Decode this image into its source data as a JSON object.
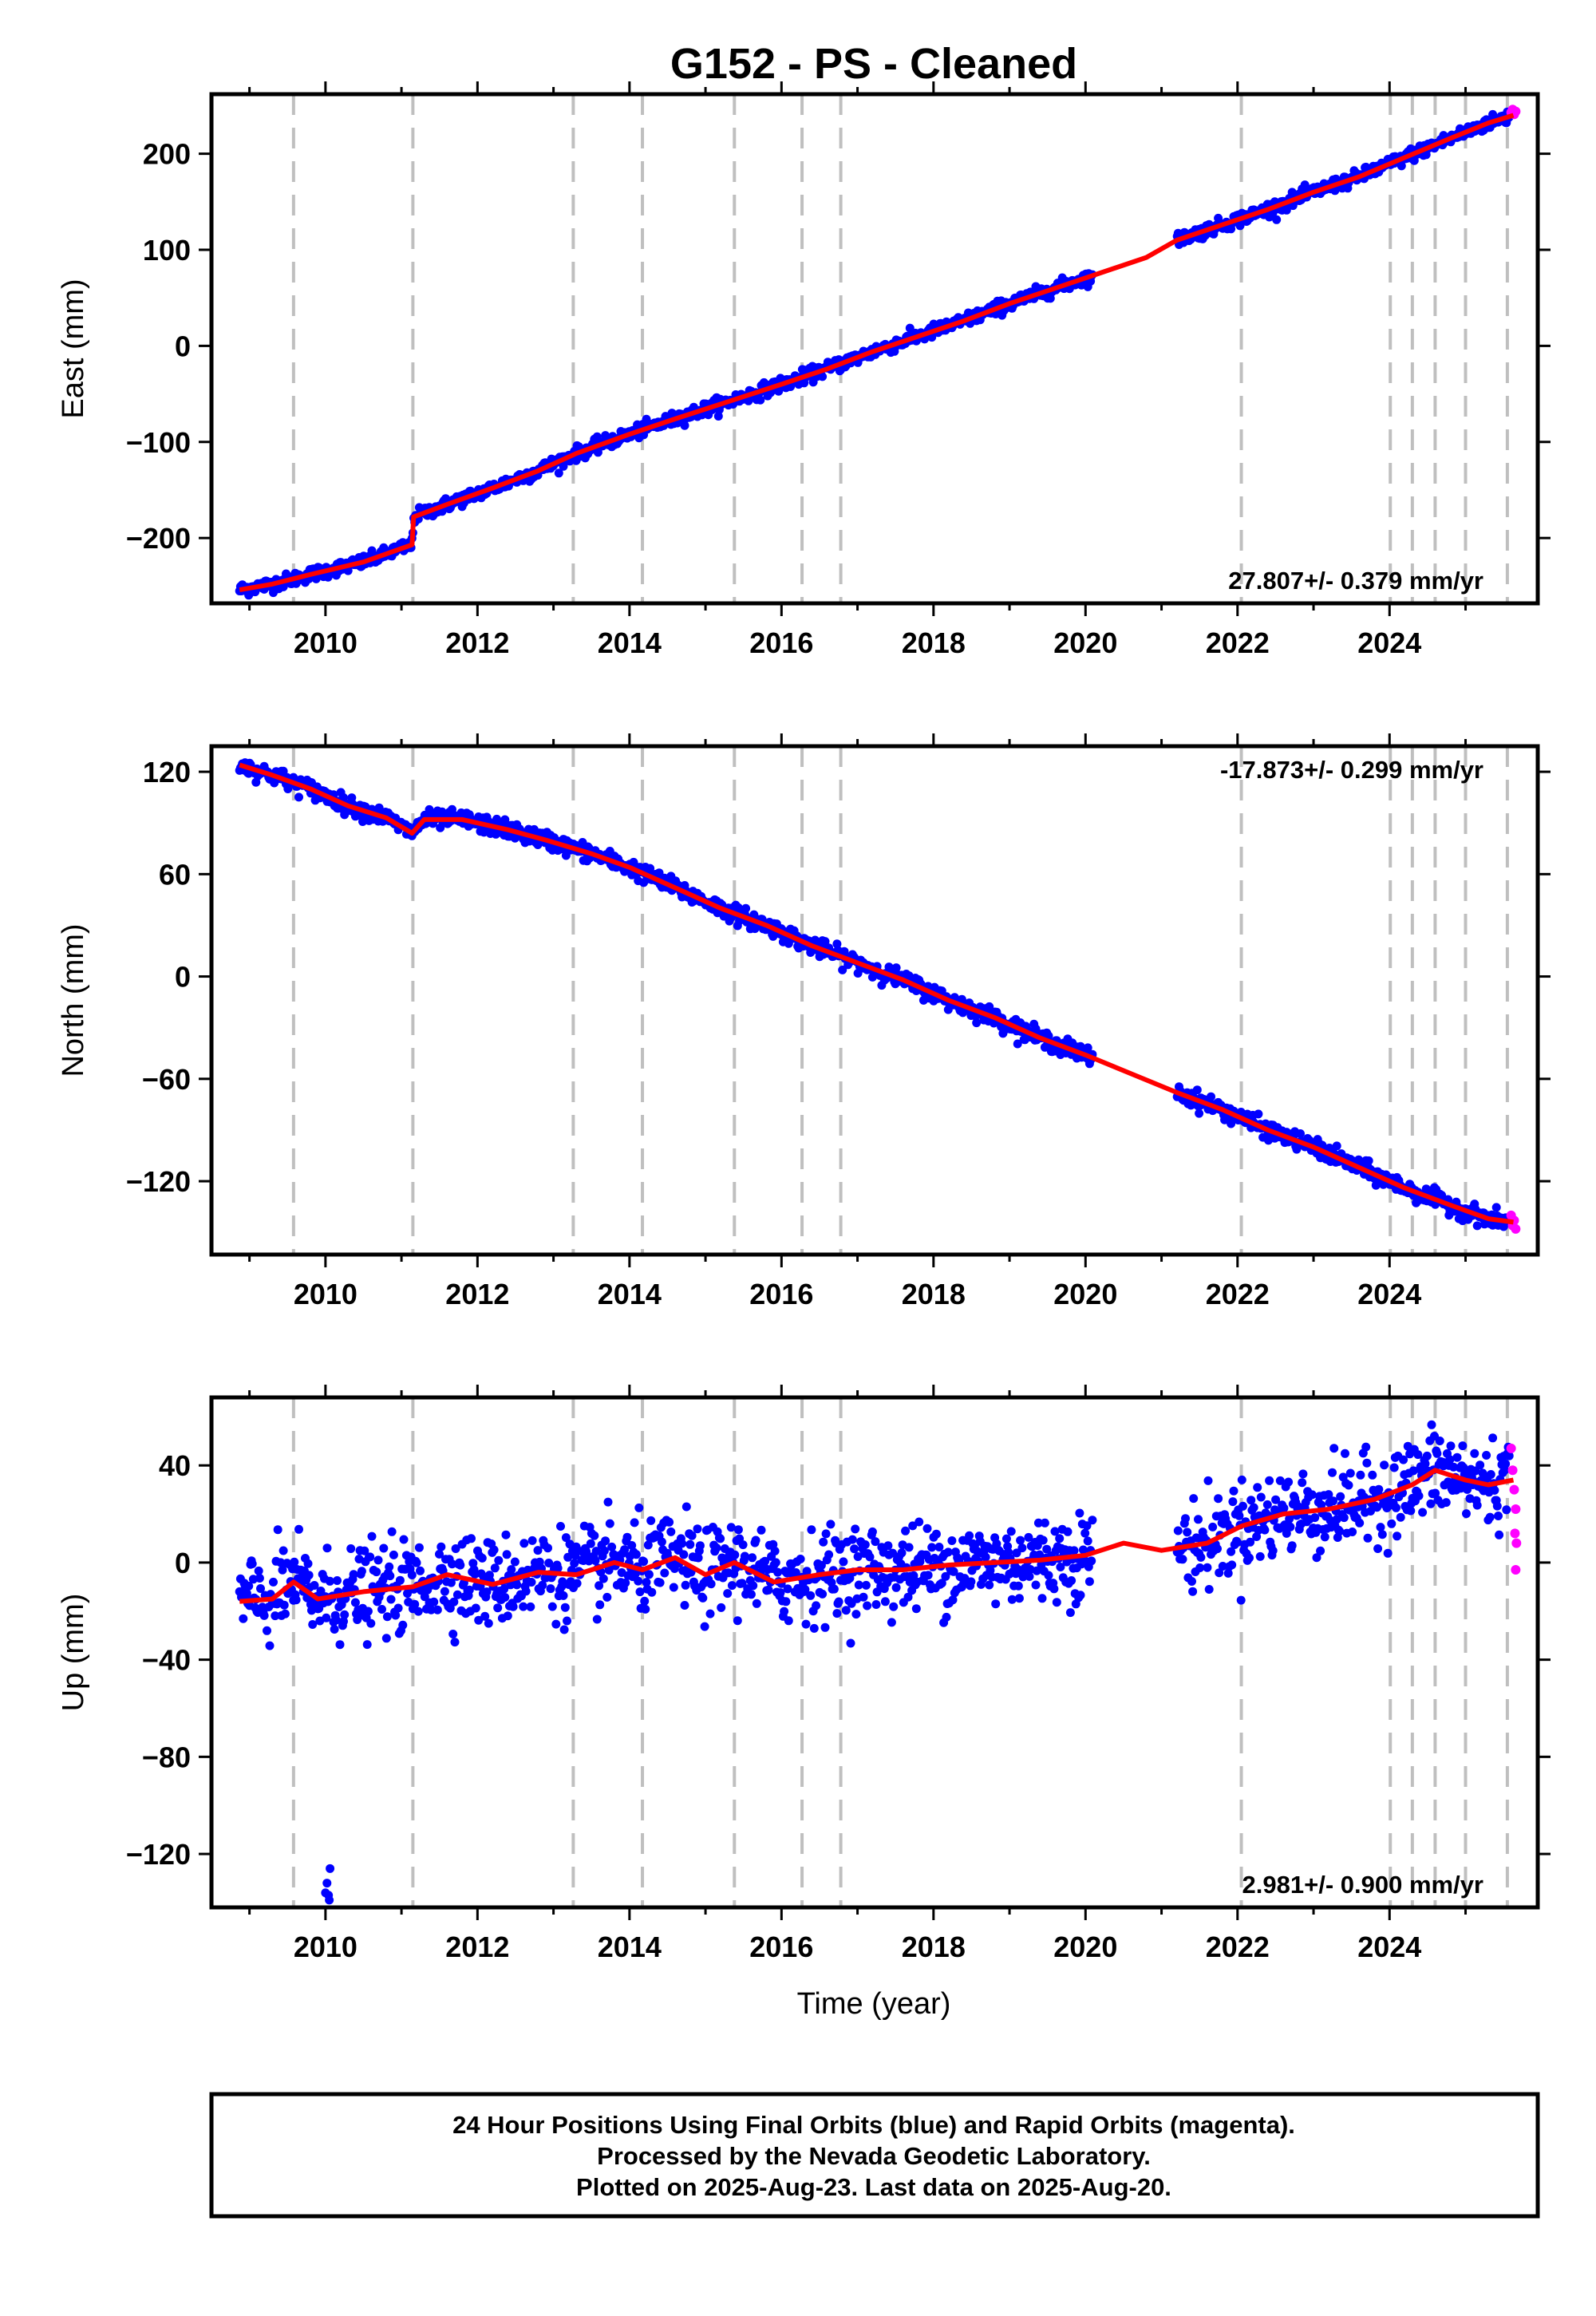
{
  "title": "G152  - PS - Cleaned",
  "xlabel": "Time (year)",
  "x_ticks": [
    2010,
    2012,
    2014,
    2016,
    2018,
    2020,
    2022,
    2024
  ],
  "x_range": [
    2008.5,
    2025.95
  ],
  "equipment_change_lines": [
    2009.58,
    2011.15,
    2013.26,
    2014.17,
    2015.38,
    2016.27,
    2016.78,
    2022.05,
    2024.01,
    2024.3,
    2024.6,
    2025.0,
    2025.55
  ],
  "colors": {
    "final_orbits": "#0000ff",
    "rapid_orbits": "#ff00ff",
    "model": "#ff0000",
    "dashed_lines": "#bfbfbf",
    "frame": "#000000"
  },
  "chart_data": [
    {
      "type": "scatter",
      "ylabel": "East (mm)",
      "ylim": [
        -268,
        262
      ],
      "y_ticks": [
        -200,
        -100,
        0,
        100,
        200
      ],
      "rate_text": "27.807+/- 0.379 mm/yr",
      "rate_position": "bottom-right",
      "data_gap": [
        2020.1,
        2021.2
      ],
      "model_points": [
        [
          2008.87,
          -254
        ],
        [
          2009.3,
          -248
        ],
        [
          2009.8,
          -238
        ],
        [
          2010.5,
          -225
        ],
        [
          2011.14,
          -207
        ],
        [
          2011.16,
          -178
        ],
        [
          2011.6,
          -165
        ],
        [
          2012.2,
          -148
        ],
        [
          2012.8,
          -130
        ],
        [
          2013.3,
          -112
        ],
        [
          2014.0,
          -92
        ],
        [
          2014.6,
          -76
        ],
        [
          2015.3,
          -58
        ],
        [
          2016.0,
          -40
        ],
        [
          2016.6,
          -24
        ],
        [
          2017.2,
          -6
        ],
        [
          2017.8,
          10
        ],
        [
          2018.4,
          26
        ],
        [
          2019.0,
          44
        ],
        [
          2019.6,
          60
        ],
        [
          2020.2,
          76
        ],
        [
          2020.8,
          92
        ],
        [
          2021.2,
          110
        ],
        [
          2021.8,
          126
        ],
        [
          2022.4,
          142
        ],
        [
          2023.0,
          160
        ],
        [
          2023.6,
          176
        ],
        [
          2024.2,
          196
        ],
        [
          2024.8,
          216
        ],
        [
          2025.3,
          232
        ],
        [
          2025.63,
          240
        ]
      ],
      "noise_mm": 3.5,
      "rapid_points": [
        [
          2025.6,
          243
        ],
        [
          2025.62,
          246
        ],
        [
          2025.64,
          241
        ],
        [
          2025.66,
          244
        ]
      ]
    },
    {
      "type": "scatter",
      "ylabel": "North (mm)",
      "ylim": [
        -163,
        135
      ],
      "y_ticks": [
        -120,
        -60,
        0,
        60,
        120
      ],
      "rate_text": "-17.873+/- 0.299 mm/yr",
      "rate_position": "top-right",
      "data_gap": [
        2020.1,
        2021.2
      ],
      "model_points": [
        [
          2008.87,
          124
        ],
        [
          2009.3,
          118
        ],
        [
          2009.8,
          110
        ],
        [
          2010.3,
          100
        ],
        [
          2010.8,
          93
        ],
        [
          2011.14,
          84
        ],
        [
          2011.3,
          92
        ],
        [
          2011.8,
          92
        ],
        [
          2012.4,
          86
        ],
        [
          2012.9,
          80
        ],
        [
          2013.5,
          72
        ],
        [
          2014.0,
          64
        ],
        [
          2014.6,
          52
        ],
        [
          2015.2,
          40
        ],
        [
          2015.8,
          30
        ],
        [
          2016.4,
          18
        ],
        [
          2017.0,
          8
        ],
        [
          2017.6,
          -2
        ],
        [
          2018.2,
          -14
        ],
        [
          2018.8,
          -24
        ],
        [
          2019.4,
          -36
        ],
        [
          2020.0,
          -46
        ],
        [
          2020.6,
          -57
        ],
        [
          2021.2,
          -68
        ],
        [
          2021.8,
          -78
        ],
        [
          2022.4,
          -90
        ],
        [
          2023.0,
          -100
        ],
        [
          2023.6,
          -112
        ],
        [
          2024.2,
          -124
        ],
        [
          2024.8,
          -134
        ],
        [
          2025.3,
          -142
        ],
        [
          2025.63,
          -144
        ]
      ],
      "noise_mm": 2.5,
      "rapid_points": [
        [
          2025.6,
          -140
        ],
        [
          2025.62,
          -146
        ],
        [
          2025.64,
          -143
        ],
        [
          2025.66,
          -148
        ]
      ]
    },
    {
      "type": "scatter",
      "ylabel": "Up (mm)",
      "ylim": [
        -142,
        68
      ],
      "y_ticks": [
        -120,
        -80,
        -40,
        0,
        40
      ],
      "rate_text": "2.981+/- 0.900 mm/yr",
      "rate_position": "bottom-right",
      "data_gap": [
        2020.1,
        2021.2
      ],
      "model_points": [
        [
          2008.87,
          -16
        ],
        [
          2009.3,
          -15
        ],
        [
          2009.58,
          -8
        ],
        [
          2009.9,
          -15
        ],
        [
          2010.5,
          -12
        ],
        [
          2011.15,
          -10
        ],
        [
          2011.6,
          -5
        ],
        [
          2012.2,
          -9
        ],
        [
          2012.8,
          -4
        ],
        [
          2013.3,
          -5
        ],
        [
          2013.8,
          0
        ],
        [
          2014.17,
          -3
        ],
        [
          2014.6,
          2
        ],
        [
          2015.0,
          -5
        ],
        [
          2015.38,
          0
        ],
        [
          2015.9,
          -8
        ],
        [
          2016.5,
          -5
        ],
        [
          2017.0,
          -3
        ],
        [
          2017.6,
          -3
        ],
        [
          2018.2,
          -1
        ],
        [
          2018.8,
          0
        ],
        [
          2019.4,
          1
        ],
        [
          2020.0,
          3
        ],
        [
          2020.5,
          8
        ],
        [
          2021.0,
          5
        ],
        [
          2021.6,
          8
        ],
        [
          2022.05,
          15
        ],
        [
          2022.6,
          20
        ],
        [
          2023.2,
          22
        ],
        [
          2023.8,
          26
        ],
        [
          2024.3,
          32
        ],
        [
          2024.6,
          38
        ],
        [
          2025.0,
          34
        ],
        [
          2025.3,
          32
        ],
        [
          2025.63,
          34
        ]
      ],
      "noise_mm": 9,
      "outliers": [
        [
          2010.0,
          -136
        ],
        [
          2010.02,
          -132
        ],
        [
          2010.04,
          -137
        ],
        [
          2010.06,
          -126
        ],
        [
          2010.05,
          -139
        ]
      ],
      "rapid_points": [
        [
          2025.6,
          47
        ],
        [
          2025.62,
          38
        ],
        [
          2025.64,
          30
        ],
        [
          2025.66,
          22
        ],
        [
          2025.65,
          12
        ],
        [
          2025.67,
          8
        ],
        [
          2025.66,
          -3
        ]
      ]
    }
  ],
  "footer": {
    "line1": "24 Hour Positions Using Final Orbits (blue) and Rapid Orbits (magenta).",
    "line2": "Processed by the Nevada Geodetic Laboratory.",
    "line3": "Plotted on 2025-Aug-23. Last data on 2025-Aug-20."
  }
}
